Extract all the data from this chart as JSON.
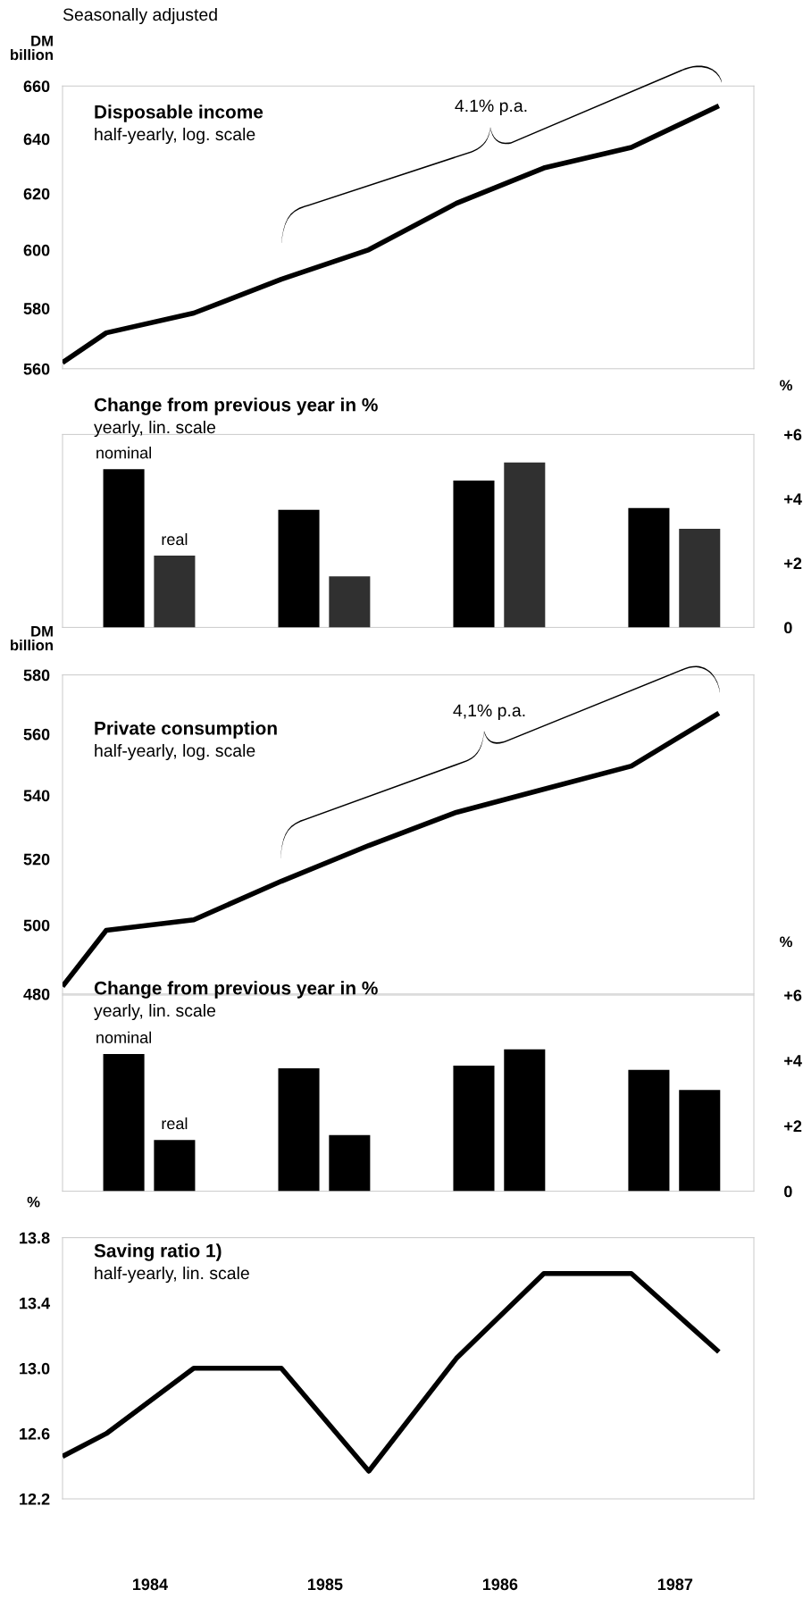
{
  "chart_data": [
    {
      "type": "line",
      "title": "Disposable income",
      "subtitle": "half-yearly, log. scale",
      "ylabel": "DM\nbillion",
      "log": true,
      "xlim": [
        1984.0,
        1987.95
      ],
      "ylim": [
        560,
        660
      ],
      "yticks": [
        560,
        580,
        600,
        620,
        640,
        660
      ],
      "tick_labels": "y",
      "annotations": [
        "Seasonally adjusted",
        "4.1% p.a."
      ],
      "series": [
        {
          "color": "#000000",
          "x": [
            1984.0,
            1984.25,
            1984.75,
            1985.25,
            1985.75,
            1986.25,
            1986.75,
            1987.25,
            1987.75
          ],
          "values": [
            562,
            571.8,
            578.4,
            589.9,
            600.1,
            616.5,
            629.3,
            636.9,
            652.4
          ]
        }
      ]
    },
    {
      "type": "bar",
      "title": "Change from previous year in %",
      "subtitle": "yearly, lin. scale",
      "ylabel": "%",
      "xlim": [
        1984.0,
        1987.95
      ],
      "ylim": [
        0,
        6
      ],
      "yticks": [
        0,
        {
          "value": 2,
          "label": "+2"
        },
        {
          "value": 4,
          "label": "+4"
        },
        {
          "value": 6,
          "label": "+6"
        }
      ],
      "tick_labels": "y",
      "series": [
        {
          "name": "nominal",
          "color": "#000000",
          "x": [
            1984.35,
            1985.35,
            1986.35,
            1987.35
          ],
          "values": [
            4.92,
            3.66,
            4.57,
            3.71
          ]
        },
        {
          "name": "real",
          "color": "#303030",
          "x": [
            1984.64,
            1985.64,
            1986.64,
            1987.64
          ],
          "values": [
            2.23,
            1.59,
            5.13,
            3.07
          ]
        }
      ]
    },
    {
      "type": "line",
      "title": "Private consumption",
      "subtitle": "half-yearly, log. scale",
      "ylabel": "DM\nbillion",
      "log": true,
      "xlim": [
        1984.0,
        1987.95
      ],
      "ylim": [
        480,
        580
      ],
      "yticks": [
        480,
        500,
        520,
        540,
        560,
        580
      ],
      "tick_labels": "y",
      "annotations": [
        "4,1% p.a."
      ],
      "series": [
        {
          "color": "#000000",
          "x": [
            1984.0,
            1984.25,
            1984.75,
            1985.25,
            1985.75,
            1986.25,
            1986.75,
            1987.25,
            1987.75
          ],
          "values": [
            482.2,
            498.5,
            501.6,
            513.2,
            524.2,
            534.6,
            542,
            549.5,
            567
          ]
        }
      ]
    },
    {
      "type": "bar",
      "title": "Change from previous year in %",
      "subtitle": "yearly, lin. scale",
      "ylabel": "%",
      "xlim": [
        1984.0,
        1987.95
      ],
      "ylim": [
        0,
        6
      ],
      "yticks": [
        0,
        {
          "value": 2,
          "label": "+2"
        },
        {
          "value": 4,
          "label": "+4"
        },
        {
          "value": 6,
          "label": "+6"
        }
      ],
      "tick_labels": "y",
      "series": [
        {
          "name": "nominal",
          "color": "#000000",
          "x": [
            1984.35,
            1985.35,
            1986.35,
            1987.35
          ],
          "values": [
            4.2,
            3.76,
            3.84,
            3.71
          ]
        },
        {
          "name": "real",
          "color": "#000000",
          "x": [
            1984.64,
            1985.64,
            1986.64,
            1987.64
          ],
          "values": [
            1.57,
            1.72,
            4.34,
            3.1
          ]
        }
      ]
    },
    {
      "type": "line",
      "title": "Saving ratio 1)",
      "subtitle": "half-yearly, lin. scale",
      "ylabel": "%",
      "xlim": [
        1984.0,
        1987.95
      ],
      "ylim": [
        12.2,
        13.8
      ],
      "yticks": [
        12.2,
        12.6,
        {
          "value": 13,
          "label": "13.0"
        },
        13.4,
        13.8
      ],
      "xticks": [
        {
          "value": 1984.5,
          "label": "1984"
        },
        {
          "value": 1985.5,
          "label": "1985"
        },
        {
          "value": 1986.5,
          "label": "1986"
        },
        {
          "value": 1987.5,
          "label": "1987"
        }
      ],
      "series": [
        {
          "color": "#000000",
          "x": [
            1984.0,
            1984.25,
            1984.75,
            1985.25,
            1985.75,
            1986.25,
            1986.75,
            1987.25,
            1987.75
          ],
          "values": [
            12.46,
            12.6,
            13.0,
            13.0,
            12.37,
            13.06,
            13.58,
            13.58,
            13.1
          ]
        }
      ]
    }
  ]
}
